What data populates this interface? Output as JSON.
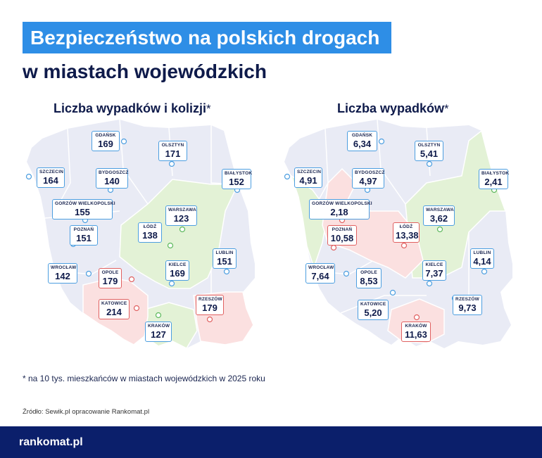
{
  "header": {
    "title": "Bezpieczeństwo na polskich drogach",
    "subtitle": "w miastach wojewódzkich"
  },
  "maps": [
    {
      "title": "Liczba wypadków i kolizji",
      "star": "*",
      "cities": [
        {
          "name": "GDAŃSK",
          "value": "169",
          "status": "normal"
        },
        {
          "name": "OLSZTYN",
          "value": "171",
          "status": "normal"
        },
        {
          "name": "SZCZECIN",
          "value": "164",
          "status": "normal"
        },
        {
          "name": "BYDGOSZCZ",
          "value": "140",
          "status": "normal"
        },
        {
          "name": "BIAŁYSTOK",
          "value": "152",
          "status": "normal"
        },
        {
          "name": "GORZÓW WIELKOPOLSKI",
          "value": "155",
          "status": "normal"
        },
        {
          "name": "WARSZAWA",
          "value": "123",
          "status": "green"
        },
        {
          "name": "POZNAŃ",
          "value": "151",
          "status": "normal"
        },
        {
          "name": "ŁÓDŹ",
          "value": "138",
          "status": "green"
        },
        {
          "name": "LUBLIN",
          "value": "151",
          "status": "normal"
        },
        {
          "name": "WROCŁAW",
          "value": "142",
          "status": "normal"
        },
        {
          "name": "OPOLE",
          "value": "179",
          "status": "red"
        },
        {
          "name": "KIELCE",
          "value": "169",
          "status": "normal"
        },
        {
          "name": "KATOWICE",
          "value": "214",
          "status": "red"
        },
        {
          "name": "RZESZÓW",
          "value": "179",
          "status": "red"
        },
        {
          "name": "KRAKÓW",
          "value": "127",
          "status": "green"
        }
      ]
    },
    {
      "title": "Liczba wypadków",
      "star": "*",
      "cities": [
        {
          "name": "GDAŃSK",
          "value": "6,34",
          "status": "normal"
        },
        {
          "name": "OLSZTYN",
          "value": "5,41",
          "status": "normal"
        },
        {
          "name": "SZCZECIN",
          "value": "4,91",
          "status": "normal"
        },
        {
          "name": "BYDGOSZCZ",
          "value": "4,97",
          "status": "normal"
        },
        {
          "name": "BIAŁYSTOK",
          "value": "2,41",
          "status": "green"
        },
        {
          "name": "GORZÓW WIELKOPOLSKI",
          "value": "2,18",
          "status": "green"
        },
        {
          "name": "WARSZAWA",
          "value": "3,62",
          "status": "green"
        },
        {
          "name": "POZNAŃ",
          "value": "10,58",
          "status": "red"
        },
        {
          "name": "ŁÓDŹ",
          "value": "13,38",
          "status": "red"
        },
        {
          "name": "LUBLIN",
          "value": "4,14",
          "status": "normal"
        },
        {
          "name": "WROCŁAW",
          "value": "7,64",
          "status": "normal"
        },
        {
          "name": "OPOLE",
          "value": "8,53",
          "status": "normal"
        },
        {
          "name": "KIELCE",
          "value": "7,37",
          "status": "normal"
        },
        {
          "name": "KATOWICE",
          "value": "5,20",
          "status": "normal"
        },
        {
          "name": "RZESZÓW",
          "value": "9,73",
          "status": "normal"
        },
        {
          "name": "KRAKÓW",
          "value": "11,63",
          "status": "red"
        }
      ]
    }
  ],
  "footnote": "* na 10 tys. mieszkańców w miastach wojewódzkich w 2025 roku",
  "source": "Źródło: Sewik.pl opracowanie Rankomat.pl",
  "footer": {
    "logo": "rankomat.pl"
  },
  "colors": {
    "title_bg": "#2e8ee6",
    "footer_bg": "#0b1f6b",
    "map_base": "#e9ebf5",
    "region_green": "#e3f2d6",
    "region_red": "#fbe0e0",
    "marker_blue": "#4c9ee0",
    "marker_red": "#e06060",
    "marker_green": "#5cb85c"
  }
}
